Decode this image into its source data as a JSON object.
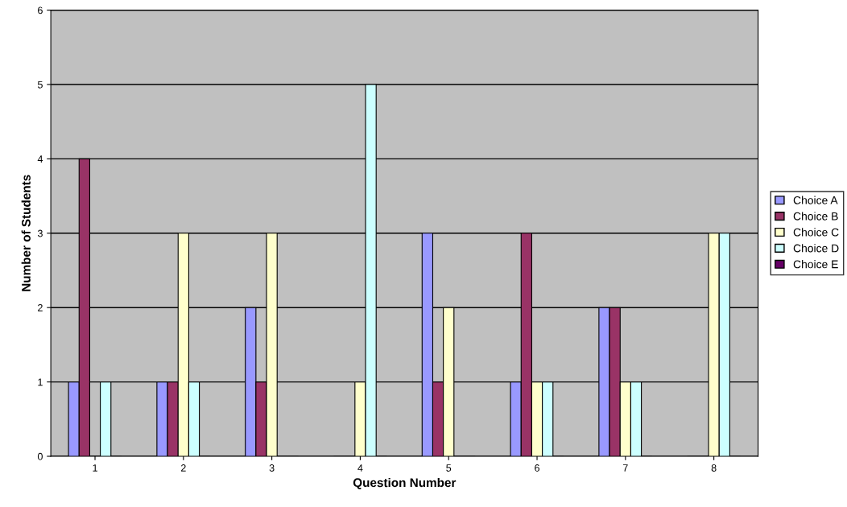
{
  "chart_data": {
    "type": "bar",
    "xlabel": "Question Number",
    "ylabel": "Number of Students",
    "categories": [
      "1",
      "2",
      "3",
      "4",
      "5",
      "6",
      "7",
      "8"
    ],
    "series": [
      {
        "name": "Choice A",
        "color": "#9999ff",
        "values": [
          1,
          1,
          2,
          0,
          3,
          1,
          2,
          0
        ]
      },
      {
        "name": "Choice B",
        "color": "#993366",
        "values": [
          4,
          1,
          1,
          0,
          1,
          3,
          2,
          0
        ]
      },
      {
        "name": "Choice C",
        "color": "#ffffcc",
        "values": [
          0,
          3,
          3,
          1,
          2,
          1,
          1,
          3
        ]
      },
      {
        "name": "Choice D",
        "color": "#ccffff",
        "values": [
          1,
          1,
          0,
          5,
          0,
          1,
          1,
          3
        ]
      },
      {
        "name": "Choice E",
        "color": "#660066",
        "values": [
          0,
          0,
          0,
          0,
          0,
          0,
          0,
          0
        ]
      }
    ],
    "ylim": [
      0,
      6
    ],
    "yticks": [
      0,
      1,
      2,
      3,
      4,
      5,
      6
    ],
    "grid": "y",
    "legend": "right"
  }
}
